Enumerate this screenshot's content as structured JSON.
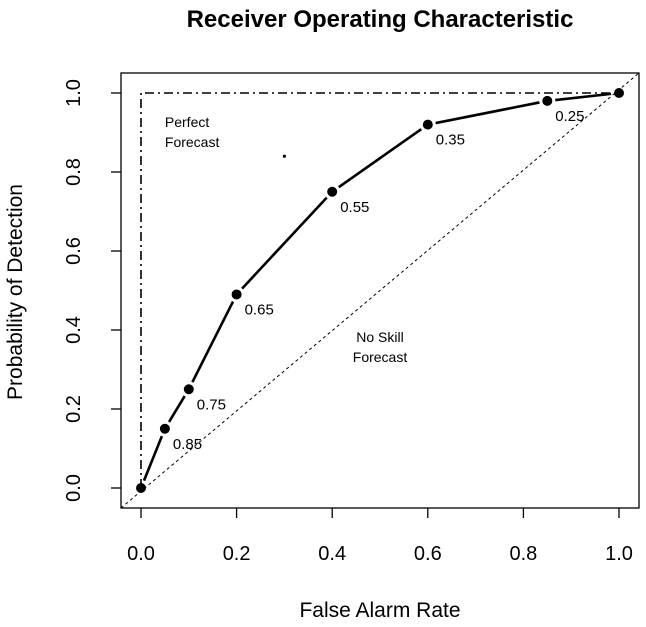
{
  "chart_data": {
    "type": "line",
    "title": "Receiver Operating Characteristic",
    "xlabel": "False Alarm Rate",
    "ylabel": "Probability of Detection",
    "xlim": [
      0,
      1
    ],
    "ylim": [
      0,
      1
    ],
    "x_ticks": [
      "0.0",
      "0.2",
      "0.4",
      "0.6",
      "0.8",
      "1.0"
    ],
    "y_ticks": [
      "0.0",
      "0.2",
      "0.4",
      "0.6",
      "0.8",
      "1.0"
    ],
    "grid": false,
    "series": [
      {
        "style": "solid-with-markers",
        "x": [
          0.0,
          0.05,
          0.1,
          0.2,
          0.4,
          0.6,
          0.85,
          1.0
        ],
        "y": [
          0.0,
          0.15,
          0.25,
          0.49,
          0.75,
          0.92,
          0.98,
          1.0
        ],
        "point_labels": [
          "",
          "0.85",
          "0.75",
          "0.65",
          "0.55",
          "0.35",
          "0.25",
          ""
        ]
      },
      {
        "style": "dashed",
        "x": [
          0,
          1
        ],
        "y": [
          0,
          1
        ]
      },
      {
        "style": "dash-dot",
        "x": [
          0,
          0,
          1
        ],
        "y": [
          0,
          1,
          1
        ]
      }
    ],
    "annotations": [
      {
        "lines": [
          "Perfect",
          "Forecast"
        ],
        "x": 0.05,
        "y": 0.96
      },
      {
        "lines": [
          "No Skill",
          "Forecast"
        ],
        "x": 0.5,
        "y": 0.37
      }
    ],
    "stray_point": {
      "x": 0.3,
      "y": 0.84
    }
  }
}
